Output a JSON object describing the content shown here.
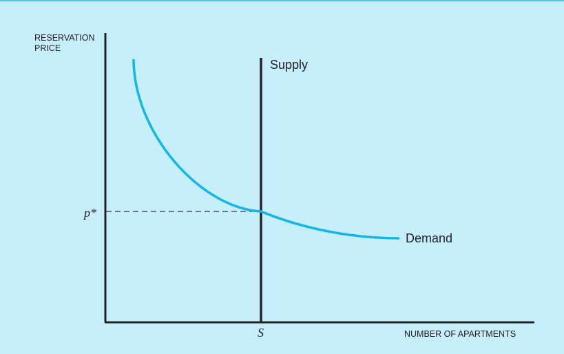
{
  "chart_data": {
    "type": "line",
    "ylabel": [
      "RESERVATION",
      "PRICE"
    ],
    "xlabel": "NUMBER OF APARTMENTS",
    "series": [
      {
        "name": "Supply",
        "type": "vertical-line",
        "x": "S"
      },
      {
        "name": "Demand",
        "type": "curve"
      }
    ],
    "annotations": {
      "price_label": "p*",
      "quantity_label": "S"
    },
    "grid": false,
    "colors": {
      "background": "#c6eefb",
      "demand": "#12b6e8",
      "supply": "#222222",
      "axis": "#222222",
      "guide": "#333333"
    }
  }
}
